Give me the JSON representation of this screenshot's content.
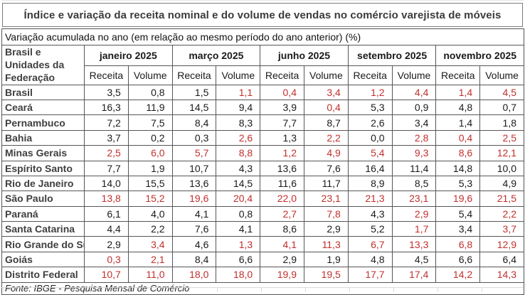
{
  "colors": {
    "negative_value": "#c0302d",
    "value_text": "#1a1a1a",
    "label_text": "#3f3f3f",
    "grid_border": "#565656"
  },
  "chart_data": {
    "type": "table",
    "title": "Índice e variação da receita nominal e do volume de vendas no comércio varejista de móveis",
    "subtitle": "Variação acumulada no ano (em relação ao mesmo período do ano anterior) (%)",
    "source": "Fonte: IBGE - Pesquisa Mensal de Comércio",
    "row_header": "Brasil e Unidades da Federação",
    "column_groups": [
      "janeiro 2025",
      "março 2025",
      "junho 2025",
      "setembro 2025",
      "novembro 2025"
    ],
    "sub_columns": [
      "Receita",
      "Volume"
    ],
    "red_means": "value shown in red font",
    "rows": [
      {
        "label": "Brasil",
        "values": [
          "3,5",
          "0,8",
          "1,5",
          "1,1",
          "0,4",
          "3,4",
          "1,2",
          "4,4",
          "1,4",
          "4,5"
        ],
        "red": [
          0,
          0,
          0,
          1,
          1,
          1,
          1,
          1,
          1,
          1
        ]
      },
      {
        "label": "Ceará",
        "values": [
          "16,3",
          "11,9",
          "14,5",
          "9,4",
          "3,9",
          "0,4",
          "5,3",
          "0,9",
          "4,8",
          "0,7"
        ],
        "red": [
          0,
          0,
          0,
          0,
          0,
          1,
          0,
          0,
          0,
          0
        ]
      },
      {
        "label": "Pernambuco",
        "values": [
          "7,2",
          "7,5",
          "8,4",
          "8,3",
          "7,7",
          "8,7",
          "2,6",
          "3,4",
          "1,4",
          "1,8"
        ],
        "red": [
          0,
          0,
          0,
          0,
          0,
          0,
          0,
          0,
          0,
          0
        ]
      },
      {
        "label": "Bahia",
        "values": [
          "3,7",
          "0,2",
          "0,3",
          "2,6",
          "1,3",
          "2,2",
          "0,0",
          "2,8",
          "0,4",
          "2,5"
        ],
        "red": [
          0,
          0,
          0,
          1,
          0,
          1,
          0,
          1,
          1,
          1
        ]
      },
      {
        "label": "Minas Gerais",
        "values": [
          "2,5",
          "6,0",
          "5,7",
          "8,8",
          "1,2",
          "4,9",
          "5,4",
          "9,3",
          "8,6",
          "12,1"
        ],
        "red": [
          1,
          1,
          1,
          1,
          1,
          1,
          1,
          1,
          1,
          1
        ]
      },
      {
        "label": "Espírito Santo",
        "values": [
          "7,7",
          "1,9",
          "10,7",
          "4,3",
          "13,6",
          "7,6",
          "16,4",
          "11,4",
          "14,8",
          "10,0"
        ],
        "red": [
          0,
          0,
          0,
          0,
          0,
          0,
          0,
          0,
          0,
          0
        ]
      },
      {
        "label": "Rio de Janeiro",
        "values": [
          "14,0",
          "15,5",
          "13,6",
          "14,5",
          "11,6",
          "11,7",
          "8,9",
          "8,5",
          "5,3",
          "4,9"
        ],
        "red": [
          0,
          0,
          0,
          0,
          0,
          0,
          0,
          0,
          0,
          0
        ]
      },
      {
        "label": "São Paulo",
        "values": [
          "13,8",
          "15,2",
          "19,6",
          "20,4",
          "22,0",
          "23,1",
          "21,3",
          "23,1",
          "19,6",
          "21,5"
        ],
        "red": [
          1,
          1,
          1,
          1,
          1,
          1,
          1,
          1,
          1,
          1
        ]
      },
      {
        "label": "Paraná",
        "values": [
          "6,1",
          "4,0",
          "4,1",
          "0,8",
          "2,7",
          "7,8",
          "4,3",
          "2,9",
          "5,4",
          "2,2"
        ],
        "red": [
          0,
          0,
          0,
          0,
          1,
          1,
          0,
          1,
          0,
          1
        ]
      },
      {
        "label": "Santa Catarina",
        "values": [
          "4,4",
          "2,2",
          "7,6",
          "4,1",
          "8,6",
          "2,9",
          "5,2",
          "1,7",
          "3,4",
          "3,7"
        ],
        "red": [
          0,
          0,
          0,
          0,
          0,
          0,
          0,
          1,
          0,
          1
        ]
      },
      {
        "label": "Rio Grande do Sul",
        "values": [
          "2,9",
          "3,4",
          "4,6",
          "1,3",
          "4,1",
          "11,3",
          "6,7",
          "13,3",
          "6,8",
          "12,9"
        ],
        "red": [
          0,
          1,
          0,
          1,
          1,
          1,
          1,
          1,
          1,
          1
        ]
      },
      {
        "label": "Goiás",
        "values": [
          "0,3",
          "2,1",
          "8,4",
          "6,6",
          "2,9",
          "1,9",
          "4,8",
          "4,5",
          "6,6",
          "6,4"
        ],
        "red": [
          1,
          1,
          0,
          0,
          0,
          0,
          0,
          0,
          0,
          0
        ]
      },
      {
        "label": "Distrito Federal",
        "values": [
          "10,7",
          "11,0",
          "18,0",
          "18,0",
          "19,9",
          "19,5",
          "17,7",
          "17,4",
          "14,2",
          "14,3"
        ],
        "red": [
          1,
          1,
          1,
          1,
          1,
          1,
          1,
          1,
          1,
          1
        ]
      }
    ]
  }
}
